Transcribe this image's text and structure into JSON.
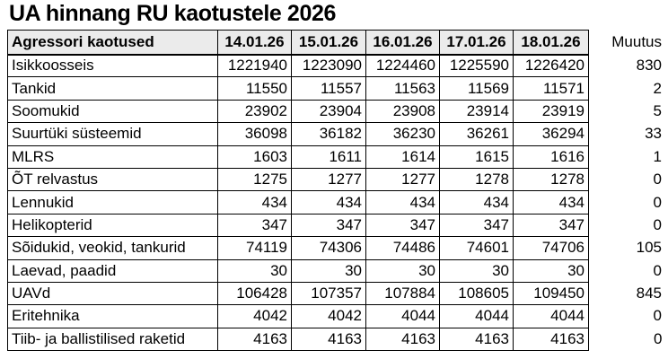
{
  "title": "UA hinnang RU kaotustele 2026",
  "colors": {
    "background": "#ffffff",
    "header_bg": "#ebebeb",
    "border": "#000000",
    "text": "#000000"
  },
  "chart_data": {
    "type": "table",
    "title": "UA hinnang RU kaotustele 2026",
    "columns": [
      "Agressori kaotused",
      "14.01.26",
      "15.01.26",
      "16.01.26",
      "17.01.26",
      "18.01.26",
      "Muutus"
    ],
    "rows": [
      [
        "Isikkoosseis",
        1221940,
        1223090,
        1224460,
        1225590,
        1226420,
        830
      ],
      [
        "Tankid",
        11550,
        11557,
        11563,
        11569,
        11571,
        2
      ],
      [
        "Soomukid",
        23902,
        23904,
        23908,
        23914,
        23919,
        5
      ],
      [
        "Suurtüki süsteemid",
        36098,
        36182,
        36230,
        36261,
        36294,
        33
      ],
      [
        "MLRS",
        1603,
        1611,
        1614,
        1615,
        1616,
        1
      ],
      [
        "ÕT relvastus",
        1275,
        1277,
        1277,
        1278,
        1278,
        0
      ],
      [
        "Lennukid",
        434,
        434,
        434,
        434,
        434,
        0
      ],
      [
        "Helikopterid",
        347,
        347,
        347,
        347,
        347,
        0
      ],
      [
        "Sõidukid, veokid, tankurid",
        74119,
        74306,
        74486,
        74601,
        74706,
        105
      ],
      [
        "Laevad, paadid",
        30,
        30,
        30,
        30,
        30,
        0
      ],
      [
        "UAVd",
        106428,
        107357,
        107884,
        108605,
        109450,
        845
      ],
      [
        "Eritehnika",
        4042,
        4042,
        4044,
        4044,
        4044,
        0
      ],
      [
        "Tiib- ja ballistilised raketid",
        4163,
        4163,
        4163,
        4163,
        4163,
        0
      ]
    ],
    "layout": {
      "header_row_shaded": true,
      "grid": true,
      "change_column_borderless": true,
      "number_alignment": "right"
    }
  }
}
